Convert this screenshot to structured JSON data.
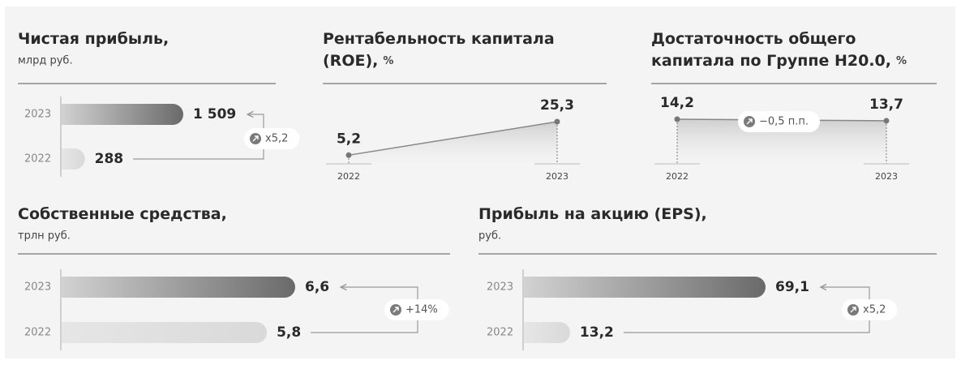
{
  "chart_data": [
    {
      "type": "bar",
      "title": [
        "Чистая прибыль,"
      ],
      "subtitle": "млрд руб.",
      "categories": [
        "2023",
        "2022"
      ],
      "values": [
        1509,
        288
      ],
      "value_labels": [
        "1 509",
        "288"
      ],
      "annotation": "x5,2"
    },
    {
      "type": "line",
      "title": [
        "Рентабельность капитала",
        "(ROE),"
      ],
      "unit": "%",
      "categories": [
        "2022",
        "2023"
      ],
      "values": [
        5.2,
        25.3
      ],
      "value_labels": [
        "5,2",
        "25,3"
      ]
    },
    {
      "type": "line",
      "title": [
        "Достаточность общего",
        "капитала по Группе Н20.0,"
      ],
      "unit": "%",
      "categories": [
        "2022",
        "2023"
      ],
      "values": [
        14.2,
        13.7
      ],
      "value_labels": [
        "14,2",
        "13,7"
      ],
      "annotation": "−0,5 п.п."
    },
    {
      "type": "bar",
      "title": [
        "Собственные средства,"
      ],
      "subtitle": "трлн руб.",
      "categories": [
        "2023",
        "2022"
      ],
      "values": [
        6.6,
        5.8
      ],
      "value_labels": [
        "6,6",
        "5,8"
      ],
      "annotation": "+14%"
    },
    {
      "type": "bar",
      "title": [
        "Прибыль на акцию (EPS),"
      ],
      "subtitle": "руб.",
      "categories": [
        "2023",
        "2022"
      ],
      "values": [
        69.1,
        13.2
      ],
      "value_labels": [
        "69,1",
        "13,2"
      ],
      "annotation": "x5,2"
    }
  ]
}
